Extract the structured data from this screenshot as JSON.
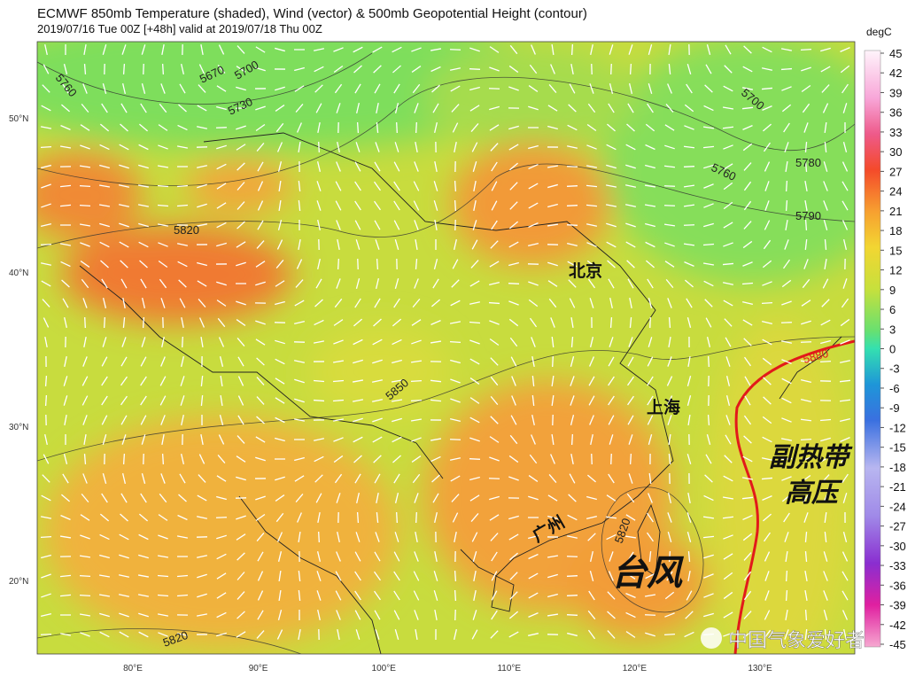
{
  "header": {
    "title": "ECMWF 850mb Temperature (shaded), Wind (vector) & 500mb Geopotential Height (contour)",
    "subtitle": "2019/07/16 Tue 00Z [+48h] valid at 2019/07/18 Thu 00Z"
  },
  "colorbar": {
    "unit": "degC",
    "ticks": [
      45,
      42,
      39,
      36,
      33,
      30,
      27,
      24,
      21,
      18,
      15,
      12,
      9,
      6,
      3,
      0,
      -3,
      -6,
      -9,
      -12,
      -15,
      -18,
      -21,
      -24,
      -27,
      -30,
      -33,
      -36,
      -39,
      -42,
      -45
    ]
  },
  "axes": {
    "lat_labels": [
      "50°N",
      "40°N",
      "30°N",
      "20°N"
    ],
    "lon_labels": [
      "80°E",
      "90°E",
      "100°E",
      "110°E",
      "120°E",
      "130°E"
    ]
  },
  "contour_labels": [
    "5760",
    "5670",
    "5700",
    "5730",
    "5820",
    "5850",
    "5700",
    "5760",
    "5780",
    "5790",
    "5880",
    "5820",
    "5820"
  ],
  "cities": [
    "北京",
    "上海",
    "广州"
  ],
  "annotations": {
    "subtropical_high": [
      "副热带",
      "高压"
    ],
    "typhoon": "台风"
  },
  "watermark": "中国气象爱好者"
}
